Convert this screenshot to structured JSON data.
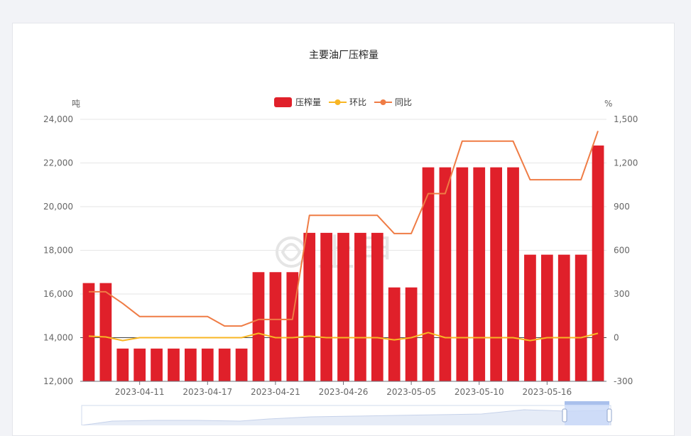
{
  "chart_data": {
    "type": "bar",
    "title": "主要油厂压榨量",
    "left_unit": "吨",
    "right_unit": "%",
    "legend": [
      "压榨量",
      "环比",
      "同比"
    ],
    "left_axis": {
      "min": 12000,
      "max": 24000,
      "ticks": [
        "24,000",
        "22,000",
        "20,000",
        "18,000",
        "16,000",
        "14,000",
        "12,000"
      ]
    },
    "right_axis": {
      "min": -300,
      "max": 1500,
      "ticks": [
        "1,500",
        "1,200",
        "900",
        "600",
        "300",
        "0",
        "-300"
      ]
    },
    "x_tick_labels": [
      "2023-04-11",
      "2023-04-17",
      "2023-04-21",
      "2023-04-26",
      "2023-05-05",
      "2023-05-10",
      "2023-05-16"
    ],
    "x_tick_label_indices": [
      3,
      7,
      11,
      15,
      19,
      23,
      27
    ],
    "series": [
      {
        "name": "压榨量",
        "type": "bar",
        "values": [
          16500,
          16500,
          13500,
          13500,
          13500,
          13500,
          13500,
          13500,
          13500,
          13500,
          17000,
          17000,
          17000,
          18800,
          18800,
          18800,
          18800,
          18800,
          16300,
          16300,
          21800,
          21800,
          21800,
          21800,
          21800,
          21800,
          17800,
          17800,
          17800,
          17800,
          22800
        ]
      },
      {
        "name": "环比",
        "type": "line",
        "values": [
          10,
          5,
          -20,
          0,
          0,
          0,
          0,
          0,
          0,
          0,
          30,
          0,
          0,
          10,
          0,
          0,
          0,
          0,
          -15,
          0,
          35,
          0,
          0,
          0,
          0,
          0,
          -20,
          0,
          0,
          0,
          30
        ]
      },
      {
        "name": "同比",
        "type": "line",
        "values": [
          315,
          315,
          235,
          145,
          145,
          145,
          145,
          145,
          80,
          80,
          125,
          125,
          125,
          840,
          840,
          840,
          840,
          840,
          715,
          715,
          990,
          990,
          1350,
          1350,
          1350,
          1350,
          1085,
          1085,
          1085,
          1085,
          1420
        ]
      }
    ],
    "colors": {
      "bar": "#e0202a",
      "mom": "#f8b624",
      "yoy": "#ef7c45",
      "grid": "#e6e6e6",
      "axis_text": "#666666"
    },
    "watermark": "上甲"
  }
}
